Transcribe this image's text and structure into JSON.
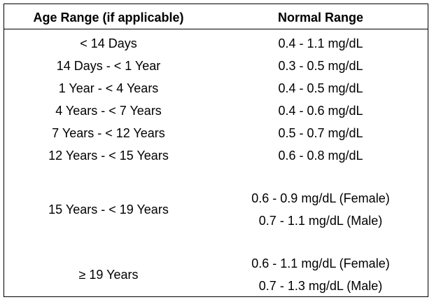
{
  "table": {
    "header": [
      "Age Range (if applicable)",
      "Normal Range"
    ],
    "rows": [
      [
        "< 14 Days",
        [
          "0.4 - 1.1 mg/dL"
        ]
      ],
      [
        "14 Days - < 1 Year",
        [
          "0.3 - 0.5 mg/dL"
        ]
      ],
      [
        "1 Year - < 4 Years",
        [
          "0.4 - 0.5 mg/dL"
        ]
      ],
      [
        "4 Years - < 7 Years",
        [
          "0.4 - 0.6 mg/dL"
        ]
      ],
      [
        "7 Years - < 12 Years",
        [
          "0.5 - 0.7 mg/dL"
        ]
      ],
      [
        "12 Years - < 15 Years",
        [
          "0.6 - 0.8 mg/dL"
        ]
      ],
      [
        "15 Years - < 19 Years",
        [
          "0.6 - 0.9 mg/dL (Female)",
          "0.7 - 1.1 mg/dL (Male)"
        ]
      ],
      [
        "≥ 19 Years",
        [
          "0.6 - 1.1 mg/dL (Female)",
          "0.7 - 1.3 mg/dL (Male)"
        ]
      ]
    ]
  }
}
